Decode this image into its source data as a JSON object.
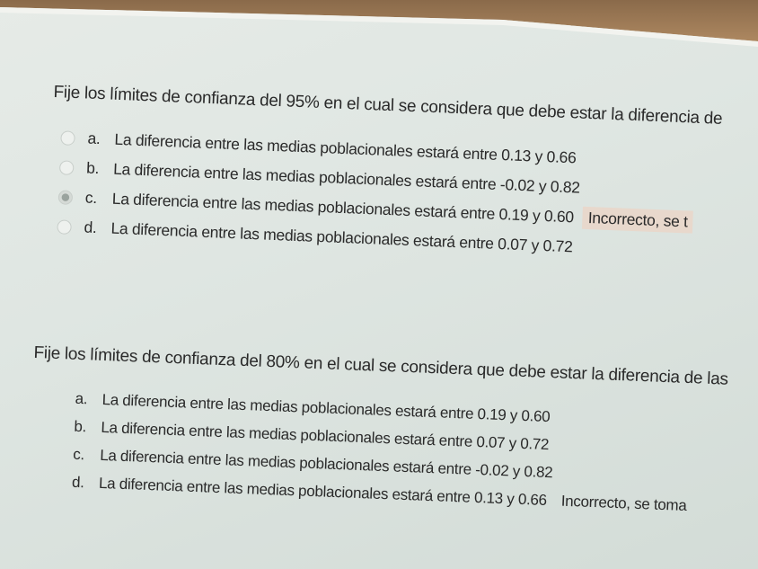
{
  "questions": [
    {
      "text": "Fije los límites de confianza del 95% en el cual se considera que debe estar la diferencia de",
      "options": [
        {
          "letter": "a.",
          "text": "La diferencia entre las medias poblacionales estará entre 0.13 y 0.66",
          "selected": false
        },
        {
          "letter": "b.",
          "text": "La diferencia entre las medias poblacionales estará entre -0.02 y 0.82",
          "selected": false
        },
        {
          "letter": "c.",
          "text": "La diferencia entre las medias poblacionales estará entre 0.19 y 0.60",
          "selected": true,
          "feedback": "Incorrecto, se t"
        },
        {
          "letter": "d.",
          "text": "La diferencia entre las medias poblacionales estará entre 0.07 y 0.72",
          "selected": false
        }
      ]
    },
    {
      "text": "Fije los límites de confianza del 80% en el cual se considera que debe estar la diferencia de las",
      "options": [
        {
          "letter": "a.",
          "text": "La diferencia entre las medias poblacionales estará entre 0.19 y 0.60"
        },
        {
          "letter": "b.",
          "text": "La diferencia entre las medias poblacionales estará entre 0.07 y 0.72"
        },
        {
          "letter": "c.",
          "text": "La diferencia entre las medias poblacionales estará entre -0.02 y 0.82"
        },
        {
          "letter": "d.",
          "text": "La diferencia entre las medias poblacionales estará entre 0.13 y 0.66",
          "feedback": "Incorrecto, se toma"
        }
      ]
    }
  ]
}
